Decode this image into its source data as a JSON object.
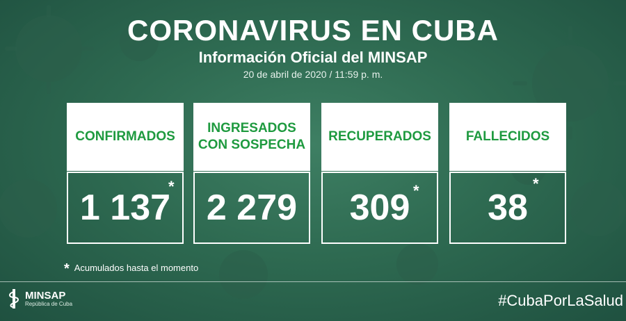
{
  "header": {
    "title": "CORONAVIRUS EN CUBA",
    "subtitle": "Información Oficial del MINSAP",
    "date": "20 de abril de 2020 / 11:59 p. m."
  },
  "cards": [
    {
      "label_line1": "CONFIRMADOS",
      "label_line2": "",
      "value": "1 137",
      "asterisk": "*"
    },
    {
      "label_line1": "INGRESADOS",
      "label_line2": "CON SOSPECHA",
      "value": "2 279",
      "asterisk": ""
    },
    {
      "label_line1": "RECUPERADOS",
      "label_line2": "",
      "value": "309",
      "asterisk": "*"
    },
    {
      "label_line1": "FALLECIDOS",
      "label_line2": "",
      "value": "38",
      "asterisk": "*"
    }
  ],
  "footnote": {
    "star": "*",
    "text": "Acumulados hasta el momento"
  },
  "footer": {
    "logo_name": "MINSAP",
    "logo_sub": "República de Cuba",
    "hashtag": "#CubaPorLaSalud"
  },
  "colors": {
    "background": "#2e6a51",
    "label_text": "#1e9a3f",
    "text": "#ffffff"
  },
  "icons": [
    "virus-icon",
    "minsap-emblem-icon"
  ]
}
